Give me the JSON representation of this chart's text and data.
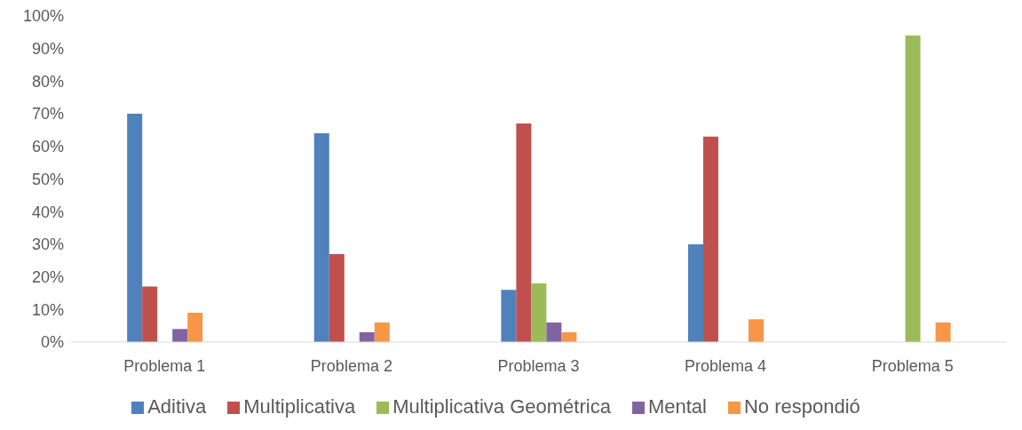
{
  "chart_data": {
    "type": "bar",
    "categories": [
      "Problema 1",
      "Problema 2",
      "Problema 3",
      "Problema 4",
      "Problema 5"
    ],
    "series": [
      {
        "name": "Aditiva",
        "color": "#4f81bd",
        "values": [
          70,
          64,
          16,
          30,
          0
        ]
      },
      {
        "name": "Multiplicativa",
        "color": "#c0504d",
        "values": [
          17,
          27,
          67,
          63,
          0
        ]
      },
      {
        "name": "Multiplicativa Geométrica",
        "color": "#9bbb59",
        "values": [
          0,
          0,
          18,
          0,
          94
        ]
      },
      {
        "name": "Mental",
        "color": "#8064a2",
        "values": [
          4,
          3,
          6,
          0,
          0
        ]
      },
      {
        "name": "No respondió",
        "color": "#f79646",
        "values": [
          9,
          6,
          3,
          7,
          6
        ]
      }
    ],
    "ylim": [
      0,
      100
    ],
    "yticks": [
      {
        "value": 0,
        "label": "0%"
      },
      {
        "value": 10,
        "label": "10%"
      },
      {
        "value": 20,
        "label": "20%"
      },
      {
        "value": 30,
        "label": "30%"
      },
      {
        "value": 40,
        "label": "40%"
      },
      {
        "value": 50,
        "label": "50%"
      },
      {
        "value": 60,
        "label": "60%"
      },
      {
        "value": 70,
        "label": "70%"
      },
      {
        "value": 80,
        "label": "80%"
      },
      {
        "value": 90,
        "label": "90%"
      },
      {
        "value": 100,
        "label": "100%"
      }
    ],
    "legend": "bottom"
  }
}
